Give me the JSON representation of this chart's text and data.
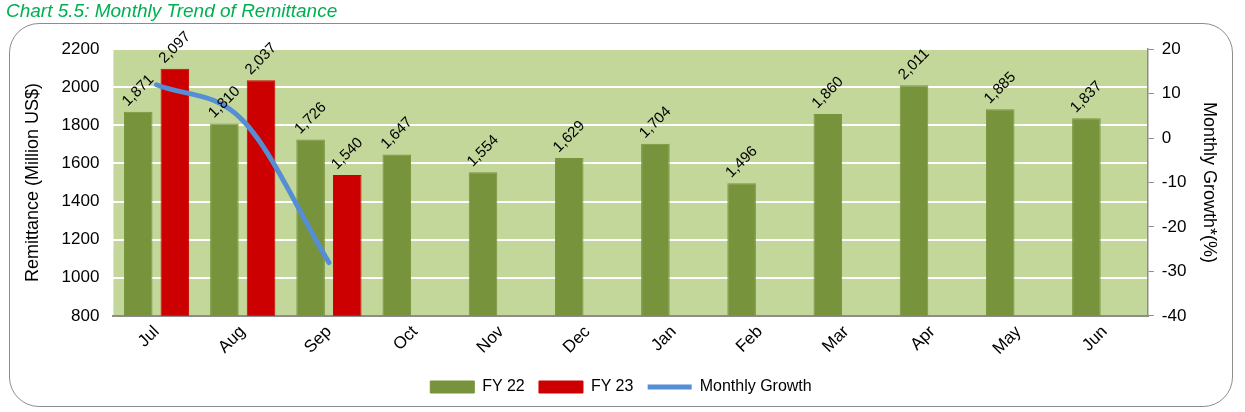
{
  "chart_data": {
    "type": "bar",
    "title": "Chart 5.5: Monthly Trend of Remittance",
    "ylabel": "Remittance (Million US$)",
    "y2label": "Monthly Growth*(%)",
    "categories": [
      "Jul",
      "Aug",
      "Sep",
      "Oct",
      "Nov",
      "Dec",
      "Jan",
      "Feb",
      "Mar",
      "Apr",
      "May",
      "Jun"
    ],
    "series": [
      {
        "name": "FY 22",
        "color": "#77933c",
        "values": [
          1871,
          1810,
          1726,
          1647,
          1554,
          1629,
          1704,
          1496,
          1860,
          2011,
          1885,
          1837
        ],
        "value_labels": [
          "1,871",
          "1,810",
          "1,726",
          "1,647",
          "1,554",
          "1,629",
          "1,704",
          "1,496",
          "1,860",
          "2,011",
          "1,885",
          "1,837"
        ]
      },
      {
        "name": "FY 23",
        "color": "#cc0000",
        "values": [
          2097,
          2037,
          1540,
          null,
          null,
          null,
          null,
          null,
          null,
          null,
          null,
          null
        ],
        "value_labels": [
          "2,097",
          "2,037",
          "1,540",
          null,
          null,
          null,
          null,
          null,
          null,
          null,
          null,
          null
        ]
      },
      {
        "name": "Monthly Growth",
        "type": "line",
        "axis": "y2",
        "color": "#558ed5",
        "values": [
          12,
          4,
          -28,
          null,
          null,
          null,
          null,
          null,
          null,
          null,
          null,
          null
        ]
      }
    ],
    "ylim": [
      800,
      2200
    ],
    "yticks": [
      800,
      1000,
      1200,
      1400,
      1600,
      1800,
      2000,
      2200
    ],
    "y2lim": [
      -40,
      20
    ],
    "y2ticks": [
      -40,
      -30,
      -20,
      -10,
      0,
      10,
      20
    ],
    "grid": "y",
    "legend": "bottom",
    "marker": "none"
  }
}
